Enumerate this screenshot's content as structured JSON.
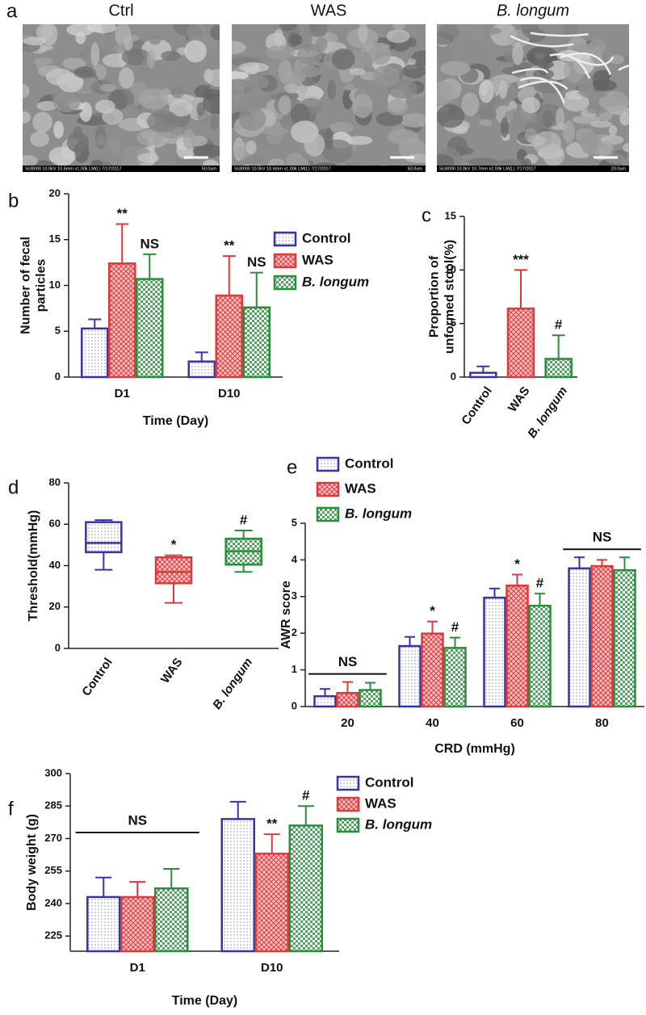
{
  "panel_a": {
    "label": "a",
    "images": [
      {
        "title": "Ctrl",
        "info": "SU8000 10.0kV 10.6mm x1.00k LM(L) 7/17/2017",
        "scale": "50.0um"
      },
      {
        "title": "WAS",
        "info": "SU8000 10.0kV 10.6mm x1.00k LM(L) 7/17/2017",
        "scale": "50.0um"
      },
      {
        "title": "B. longum",
        "info": "SU8000 10.0kV 10.7mm x2.00k LM(L) 7/17/2017",
        "scale": "20.0um"
      }
    ]
  },
  "chart_data": [
    {
      "type": "bar",
      "label": "b",
      "categories": [
        "D1",
        "D10"
      ],
      "series": [
        {
          "name": "Control",
          "color": "#3535a5",
          "values": [
            5.3,
            1.7
          ],
          "errors": [
            1.0,
            1.0
          ]
        },
        {
          "name": "WAS",
          "color": "#e0393b",
          "values": [
            12.4,
            8.9
          ],
          "errors": [
            4.3,
            4.3
          ],
          "significance": [
            "**",
            "**"
          ]
        },
        {
          "name": "B. longum",
          "color": "#2b8c3c",
          "values": [
            10.7,
            7.6
          ],
          "errors": [
            2.7,
            3.8
          ],
          "significance": [
            "NS",
            "NS"
          ]
        }
      ],
      "ylim": [
        0,
        20
      ],
      "yticks": [
        0,
        5,
        10,
        15,
        20
      ],
      "xlabel": "Time (Day)",
      "ylabel": [
        "Number of fecal",
        "particles"
      ]
    },
    {
      "type": "bar",
      "label": "c",
      "categories": [
        "Control",
        "WAS",
        "B. longum"
      ],
      "values": [
        0.4,
        6.4,
        1.7
      ],
      "errors": [
        0.6,
        3.6,
        2.2
      ],
      "colors": [
        "#3535a5",
        "#e0393b",
        "#2b8c3c"
      ],
      "significance": [
        null,
        "***",
        "#"
      ],
      "ylim": [
        0,
        15
      ],
      "yticks": [
        0,
        5,
        10,
        15
      ],
      "ylabel": [
        "Proportion of",
        "unformed stool(%)"
      ]
    },
    {
      "type": "box",
      "label": "d",
      "categories": [
        "Control",
        "WAS",
        "B. longum"
      ],
      "colors": [
        "#3535a5",
        "#e0393b",
        "#2b8c3c"
      ],
      "boxes": [
        {
          "min": 38,
          "q1": 46.5,
          "median": 51,
          "q3": 61,
          "max": 62
        },
        {
          "min": 22,
          "q1": 31.5,
          "median": 37,
          "q3": 44,
          "max": 45
        },
        {
          "min": 37,
          "q1": 40.5,
          "median": 47,
          "q3": 53,
          "max": 57
        }
      ],
      "significance": [
        null,
        "*",
        "#"
      ],
      "ylim": [
        0,
        80
      ],
      "yticks": [
        0,
        20,
        40,
        60,
        80
      ],
      "ylabel": "Threshold(mmHg)"
    },
    {
      "type": "bar",
      "label": "e",
      "categories": [
        "20",
        "40",
        "60",
        "80"
      ],
      "series": [
        {
          "name": "Control",
          "color": "#3535a5",
          "values": [
            0.28,
            1.65,
            2.97,
            3.77
          ],
          "errors": [
            0.2,
            0.25,
            0.25,
            0.3
          ]
        },
        {
          "name": "WAS",
          "color": "#e0393b",
          "values": [
            0.37,
            1.99,
            3.3,
            3.83
          ],
          "errors": [
            0.3,
            0.33,
            0.3,
            0.17
          ],
          "significance": [
            null,
            "*",
            "*",
            null
          ]
        },
        {
          "name": "B. longum",
          "color": "#2b8c3c",
          "values": [
            0.45,
            1.6,
            2.75,
            3.72
          ],
          "errors": [
            0.2,
            0.28,
            0.33,
            0.35
          ],
          "significance": [
            null,
            "#",
            "#",
            null
          ]
        }
      ],
      "group_labels": [
        "NS",
        null,
        null,
        "NS"
      ],
      "ylim": [
        0,
        5
      ],
      "yticks": [
        0,
        1,
        2,
        3,
        4,
        5
      ],
      "xlabel": "CRD (mmHg)",
      "ylabel": "AWR score"
    },
    {
      "type": "bar",
      "label": "f",
      "categories": [
        "D1",
        "D10"
      ],
      "series": [
        {
          "name": "Control",
          "color": "#3535a5",
          "values": [
            243,
            279
          ],
          "errors": [
            9,
            8
          ]
        },
        {
          "name": "WAS",
          "color": "#e0393b",
          "values": [
            243,
            263
          ],
          "errors": [
            7,
            9
          ],
          "significance": [
            null,
            "**"
          ]
        },
        {
          "name": "B. longum",
          "color": "#2b8c3c",
          "values": [
            247,
            276
          ],
          "errors": [
            9,
            9
          ],
          "significance": [
            null,
            "#"
          ]
        }
      ],
      "group_labels": [
        "NS",
        null
      ],
      "ylim": [
        218,
        300
      ],
      "yticks": [
        225,
        240,
        255,
        270,
        285,
        300
      ],
      "xlabel": "Time (Day)",
      "ylabel": "Body weight (g)"
    }
  ]
}
